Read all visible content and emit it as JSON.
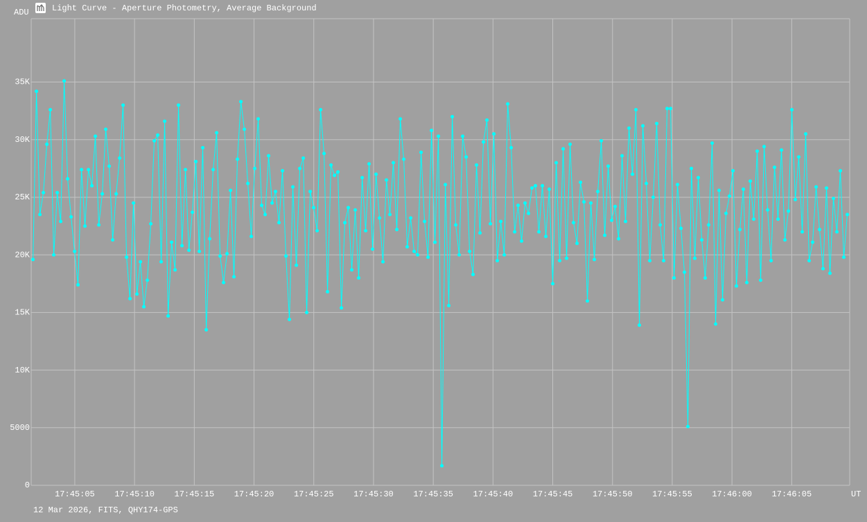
{
  "chart_data": {
    "type": "line",
    "title": "Light Curve - Aperture Photometry, Average Background",
    "y_label": "ADU",
    "x_label": "UT",
    "footer": "12 Mar 2026, FITS, QHY174-GPS",
    "grid": true,
    "color": "#00ffff",
    "xlim": [
      1.35,
      69.85
    ],
    "ylim": [
      0,
      40500
    ],
    "xticks": [
      {
        "value": 5,
        "label": "17:45:05"
      },
      {
        "value": 10,
        "label": "17:45:10"
      },
      {
        "value": 15,
        "label": "17:45:15"
      },
      {
        "value": 20,
        "label": "17:45:20"
      },
      {
        "value": 25,
        "label": "17:45:25"
      },
      {
        "value": 30,
        "label": "17:45:30"
      },
      {
        "value": 35,
        "label": "17:45:35"
      },
      {
        "value": 40,
        "label": "17:45:40"
      },
      {
        "value": 45,
        "label": "17:45:45"
      },
      {
        "value": 50,
        "label": "17:45:50"
      },
      {
        "value": 55,
        "label": "17:45:55"
      },
      {
        "value": 60,
        "label": "17:46:00"
      },
      {
        "value": 65,
        "label": "17:46:05"
      }
    ],
    "yticks": [
      0,
      5000,
      {
        "value": 10000,
        "label": "10K"
      },
      {
        "value": 15000,
        "label": "15K"
      },
      {
        "value": 20000,
        "label": "20K"
      },
      {
        "value": 25000,
        "label": "25K"
      },
      {
        "value": 30000,
        "label": "30K"
      },
      {
        "value": 35000,
        "label": "35K"
      }
    ],
    "x": [
      1.5,
      1.79,
      2.08,
      2.37,
      2.66,
      2.95,
      3.24,
      3.53,
      3.82,
      4.11,
      4.4,
      4.69,
      4.98,
      5.27,
      5.56,
      5.85,
      6.14,
      6.43,
      6.72,
      7.01,
      7.3,
      7.59,
      7.88,
      8.17,
      8.46,
      8.75,
      9.04,
      9.33,
      9.62,
      9.91,
      10.2,
      10.49,
      10.78,
      11.07,
      11.36,
      11.65,
      11.94,
      12.23,
      12.52,
      12.81,
      13.1,
      13.39,
      13.68,
      13.97,
      14.26,
      14.55,
      14.84,
      15.13,
      15.42,
      15.71,
      16,
      16.29,
      16.58,
      16.87,
      17.16,
      17.45,
      17.74,
      18.03,
      18.32,
      18.61,
      18.9,
      19.19,
      19.48,
      19.77,
      20.06,
      20.35,
      20.64,
      20.93,
      21.22,
      21.51,
      21.8,
      22.09,
      22.38,
      22.67,
      22.96,
      23.25,
      23.54,
      23.83,
      24.12,
      24.41,
      24.7,
      24.99,
      25.28,
      25.57,
      25.86,
      26.15,
      26.44,
      26.73,
      27.02,
      27.31,
      27.6,
      27.89,
      28.18,
      28.47,
      28.76,
      29.05,
      29.34,
      29.63,
      29.92,
      30.21,
      30.5,
      30.79,
      31.08,
      31.37,
      31.66,
      31.95,
      32.24,
      32.53,
      32.82,
      33.11,
      33.4,
      33.69,
      33.98,
      34.27,
      34.56,
      34.85,
      35.14,
      35.43,
      35.72,
      36.01,
      36.3,
      36.59,
      36.88,
      37.17,
      37.46,
      37.75,
      38.04,
      38.33,
      38.62,
      38.91,
      39.2,
      39.49,
      39.78,
      40.07,
      40.36,
      40.65,
      40.94,
      41.23,
      41.52,
      41.81,
      42.1,
      42.39,
      42.68,
      42.97,
      43.26,
      43.55,
      43.84,
      44.13,
      44.42,
      44.71,
      45,
      45.29,
      45.58,
      45.87,
      46.16,
      46.45,
      46.74,
      47.03,
      47.32,
      47.61,
      47.9,
      48.19,
      48.48,
      48.77,
      49.06,
      49.35,
      49.64,
      49.93,
      50.22,
      50.51,
      50.8,
      51.09,
      51.38,
      51.67,
      51.96,
      52.25,
      52.54,
      52.83,
      53.12,
      53.41,
      53.7,
      53.99,
      54.28,
      54.57,
      54.86,
      55.15,
      55.44,
      55.73,
      56.02,
      56.31,
      56.6,
      56.89,
      57.18,
      57.47,
      57.76,
      58.05,
      58.34,
      58.63,
      58.92,
      59.21,
      59.5,
      59.79,
      60.08,
      60.37,
      60.66,
      60.95,
      61.24,
      61.53,
      61.82,
      62.11,
      62.4,
      62.69,
      62.98,
      63.27,
      63.56,
      63.85,
      64.14,
      64.43,
      64.72,
      65.01,
      65.3,
      65.59,
      65.88,
      66.17,
      66.46,
      66.75,
      67.04,
      67.33,
      67.62,
      67.91,
      68.2,
      68.49,
      68.78,
      69.07,
      69.36,
      69.65
    ],
    "values": [
      19600,
      34200,
      23500,
      25400,
      29600,
      32600,
      20000,
      25400,
      22900,
      35100,
      26600,
      23300,
      20300,
      17400,
      27400,
      22500,
      27400,
      26000,
      30300,
      22600,
      25300,
      30900,
      27700,
      21300,
      25300,
      28400,
      33000,
      19800,
      16200,
      24500,
      16600,
      19400,
      15500,
      17800,
      22700,
      29900,
      30400,
      19400,
      31600,
      14700,
      21100,
      18700,
      33000,
      20800,
      27400,
      20400,
      23700,
      28100,
      20300,
      29300,
      13500,
      21400,
      27400,
      30600,
      19900,
      17600,
      20100,
      25600,
      18100,
      28300,
      33300,
      30900,
      26200,
      21600,
      27500,
      31800,
      24300,
      23500,
      28600,
      24500,
      25500,
      22800,
      27300,
      19900,
      14400,
      25900,
      19100,
      27500,
      28400,
      15000,
      25500,
      24100,
      22100,
      32600,
      28800,
      16800,
      27800,
      26900,
      27200,
      15400,
      22800,
      24100,
      18700,
      23900,
      18000,
      26700,
      22100,
      27900,
      20500,
      27000,
      23200,
      19400,
      26500,
      23500,
      28000,
      22200,
      31800,
      28300,
      20700,
      23200,
      20300,
      20000,
      28900,
      22900,
      19800,
      30800,
      21100,
      30300,
      1700,
      26100,
      15600,
      32000,
      22600,
      20000,
      30300,
      28500,
      20300,
      18300,
      27800,
      21900,
      29800,
      31700,
      22700,
      30500,
      19500,
      22900,
      20000,
      33100,
      29300,
      22000,
      24300,
      21200,
      24500,
      23600,
      25800,
      26000,
      22000,
      26000,
      21600,
      25700,
      17500,
      28000,
      19500,
      29200,
      19700,
      29600,
      22800,
      21000,
      26300,
      24600,
      16000,
      24500,
      19600,
      25500,
      29900,
      21700,
      27700,
      23000,
      24200,
      21400,
      28600,
      22900,
      31000,
      27000,
      32600,
      13900,
      31200,
      26200,
      19500,
      25000,
      31400,
      22600,
      19500,
      32700,
      32700,
      18000,
      26100,
      22300,
      18500,
      5100,
      27500,
      19700,
      26700,
      21300,
      18000,
      22600,
      29700,
      14000,
      25600,
      16100,
      23600,
      25100,
      27300,
      17300,
      22200,
      25700,
      17600,
      26400,
      23100,
      29000,
      17800,
      29400,
      23900,
      19500,
      27600,
      23100,
      29100,
      21300,
      23800,
      32600,
      24800,
      28500,
      22000,
      30500,
      19500,
      21100,
      25900,
      22200,
      18800,
      25800,
      18400,
      24900,
      22000,
      27300,
      19800,
      23500
    ]
  }
}
